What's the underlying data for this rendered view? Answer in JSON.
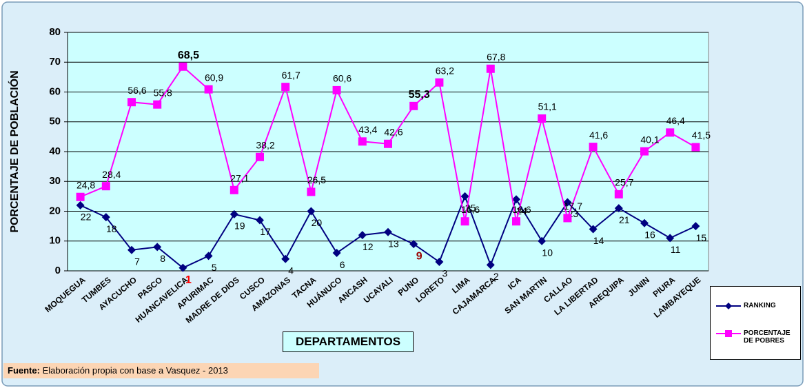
{
  "chart_data": {
    "type": "line",
    "categories": [
      "MOQUEGUA",
      "TUMBES",
      "AYACUCHO",
      "PASCO",
      "HUANCAVELICA",
      "APURIMAC",
      "MADRE DE DIOS",
      "CUSCO",
      "AMAZONAS",
      "TACNA",
      "HUÁNUCO",
      "ANCASH",
      "UCAYALI",
      "PUNO",
      "LORETO",
      "LIMA",
      "CAJAMARCA",
      "ICA",
      "SAN MARTIN",
      "CALLAO",
      "LA LIBERTAD",
      "AREQUIPA",
      "JUNIN",
      "PIURA",
      "LAMBAYEQUE"
    ],
    "series": [
      {
        "name": "RANKING",
        "color": "#000080",
        "marker": "diamond",
        "values": [
          22,
          18,
          7,
          8,
          1,
          5,
          19,
          17,
          4,
          20,
          6,
          12,
          13,
          9,
          3,
          25,
          2,
          24,
          10,
          23,
          14,
          21,
          16,
          11,
          15
        ]
      },
      {
        "name": "PORCENTAJE DE POBRES",
        "color": "#ff00ff",
        "marker": "square",
        "values": [
          24.8,
          28.4,
          56.6,
          55.8,
          68.5,
          60.9,
          27.1,
          38.2,
          61.7,
          26.5,
          60.6,
          43.4,
          42.6,
          55.3,
          63.2,
          16.6,
          67.8,
          16.6,
          51.1,
          17.7,
          41.6,
          25.7,
          40.1,
          46.4,
          41.5
        ],
        "value_labels": [
          "24,8",
          "28,4",
          "56,6",
          "55,8",
          "68,5",
          "60,9",
          "27,1",
          "38,2",
          "61,7",
          "26,5",
          "60,6",
          "43,4",
          "42,6",
          "55,3",
          "63,2",
          "16,6",
          "67,8",
          "16,6",
          "51,1",
          "17,7",
          "41,6",
          "25,7",
          "40,1",
          "46,4",
          "41,5"
        ]
      }
    ],
    "xlabel": "DEPARTAMENTOS",
    "ylabel": "PORCENTAJE DE POBLACIÓN",
    "ylim": [
      0,
      80
    ],
    "yticks": [
      0,
      10,
      20,
      30,
      40,
      50,
      60,
      70,
      80
    ],
    "grid": true,
    "legend": "right",
    "source_label": "Fuente:",
    "source_text": "Elaboración propia con base a Vasquez - 2013"
  }
}
